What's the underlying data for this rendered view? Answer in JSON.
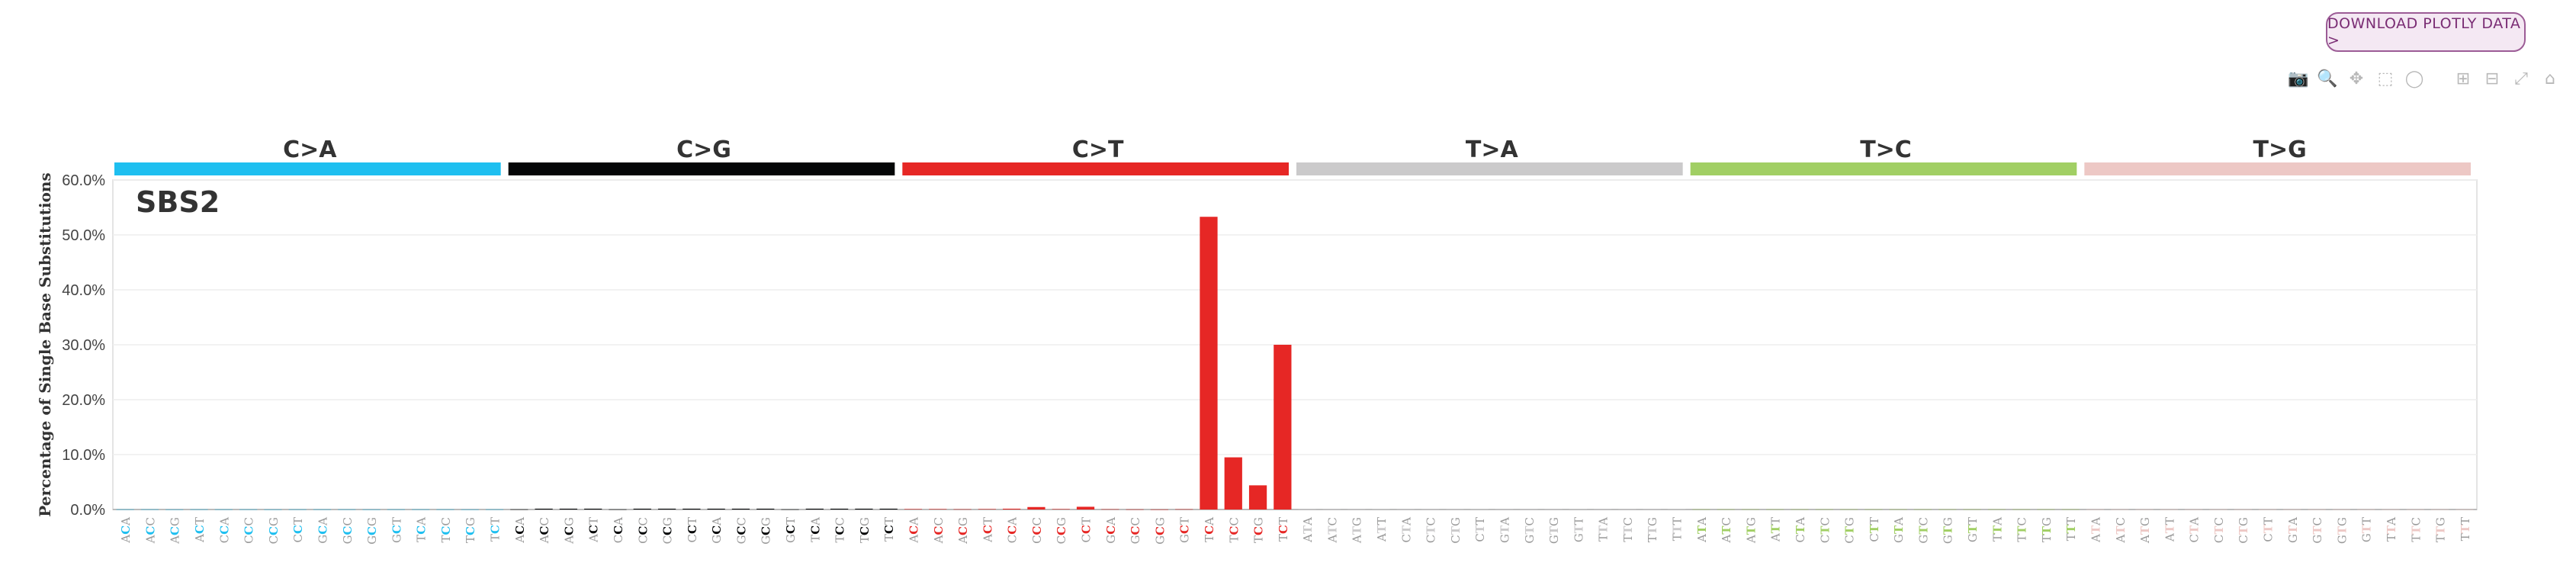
{
  "toolbar": {
    "download_label": "DOWNLOAD PLOTLY DATA >",
    "icons": [
      "camera-icon",
      "zoom-icon",
      "pan-icon",
      "box-select-icon",
      "lasso-icon",
      "zoom-in-icon",
      "zoom-out-icon",
      "autoscale-icon",
      "reset-axes-icon"
    ]
  },
  "chart_data": {
    "type": "bar",
    "title": "SBS2",
    "ylabel": "Percentage of Single Base Substitutions",
    "xlabel": "",
    "ylim": [
      0,
      0.6
    ],
    "yticks": [
      "0.0%",
      "10.0%",
      "20.0%",
      "30.0%",
      "40.0%",
      "50.0%",
      "60.0%"
    ],
    "grid": true,
    "groups": [
      {
        "name": "C>A",
        "color": "#1ebff0"
      },
      {
        "name": "C>G",
        "color": "#050708"
      },
      {
        "name": "C>T",
        "color": "#e62725"
      },
      {
        "name": "T>A",
        "color": "#cbcacb"
      },
      {
        "name": "T>C",
        "color": "#a1cf64"
      },
      {
        "name": "T>G",
        "color": "#edc8c5"
      }
    ],
    "categories_per_group": {
      "C": [
        "ACA",
        "ACC",
        "ACG",
        "ACT",
        "CCA",
        "CCC",
        "CCG",
        "CCT",
        "GCA",
        "GCC",
        "GCG",
        "GCT",
        "TCA",
        "TCC",
        "TCG",
        "TCT"
      ],
      "T": [
        "ATA",
        "ATC",
        "ATG",
        "ATT",
        "CTA",
        "CTC",
        "CTG",
        "CTT",
        "GTA",
        "GTC",
        "GTG",
        "GTT",
        "TTA",
        "TTC",
        "TTG",
        "TTT"
      ]
    },
    "values": [
      0.0003,
      0.0003,
      0.0002,
      0.0003,
      0.0003,
      0.0003,
      0.0002,
      0.0003,
      0.0003,
      0.0003,
      0.0002,
      0.0003,
      0.0003,
      0.0003,
      0.0002,
      0.0003,
      0.0003,
      0.0015,
      0.0015,
      0.0015,
      0.0003,
      0.0015,
      0.0015,
      0.0015,
      0.0015,
      0.0015,
      0.0015,
      0.0003,
      0.0015,
      0.0015,
      0.0015,
      0.0015,
      0.0008,
      0.0008,
      0.0005,
      0.0008,
      0.0015,
      0.0045,
      0.0008,
      0.005,
      0.0005,
      0.0003,
      0.0002,
      0.0005,
      0.533,
      0.095,
      0.044,
      0.3,
      0.0004,
      0.0004,
      0.0004,
      0.0008,
      0.0004,
      0.0004,
      0.0004,
      0.0008,
      0.0004,
      0.0004,
      0.0004,
      0.0008,
      0.0004,
      0.0004,
      0.0004,
      0.0008,
      0.0004,
      0.0004,
      0.0004,
      0.0004,
      0.0004,
      0.0004,
      0.0004,
      0.0004,
      0.0004,
      0.0004,
      0.0004,
      0.0004,
      0.0004,
      0.0004,
      0.0004,
      0.0004,
      0.0003,
      0.0003,
      0.0003,
      0.0003,
      0.0003,
      0.0003,
      0.0003,
      0.0003,
      0.0003,
      0.0003,
      0.0003,
      0.0003,
      0.0003,
      0.0003,
      0.0003,
      0.0003
    ]
  }
}
